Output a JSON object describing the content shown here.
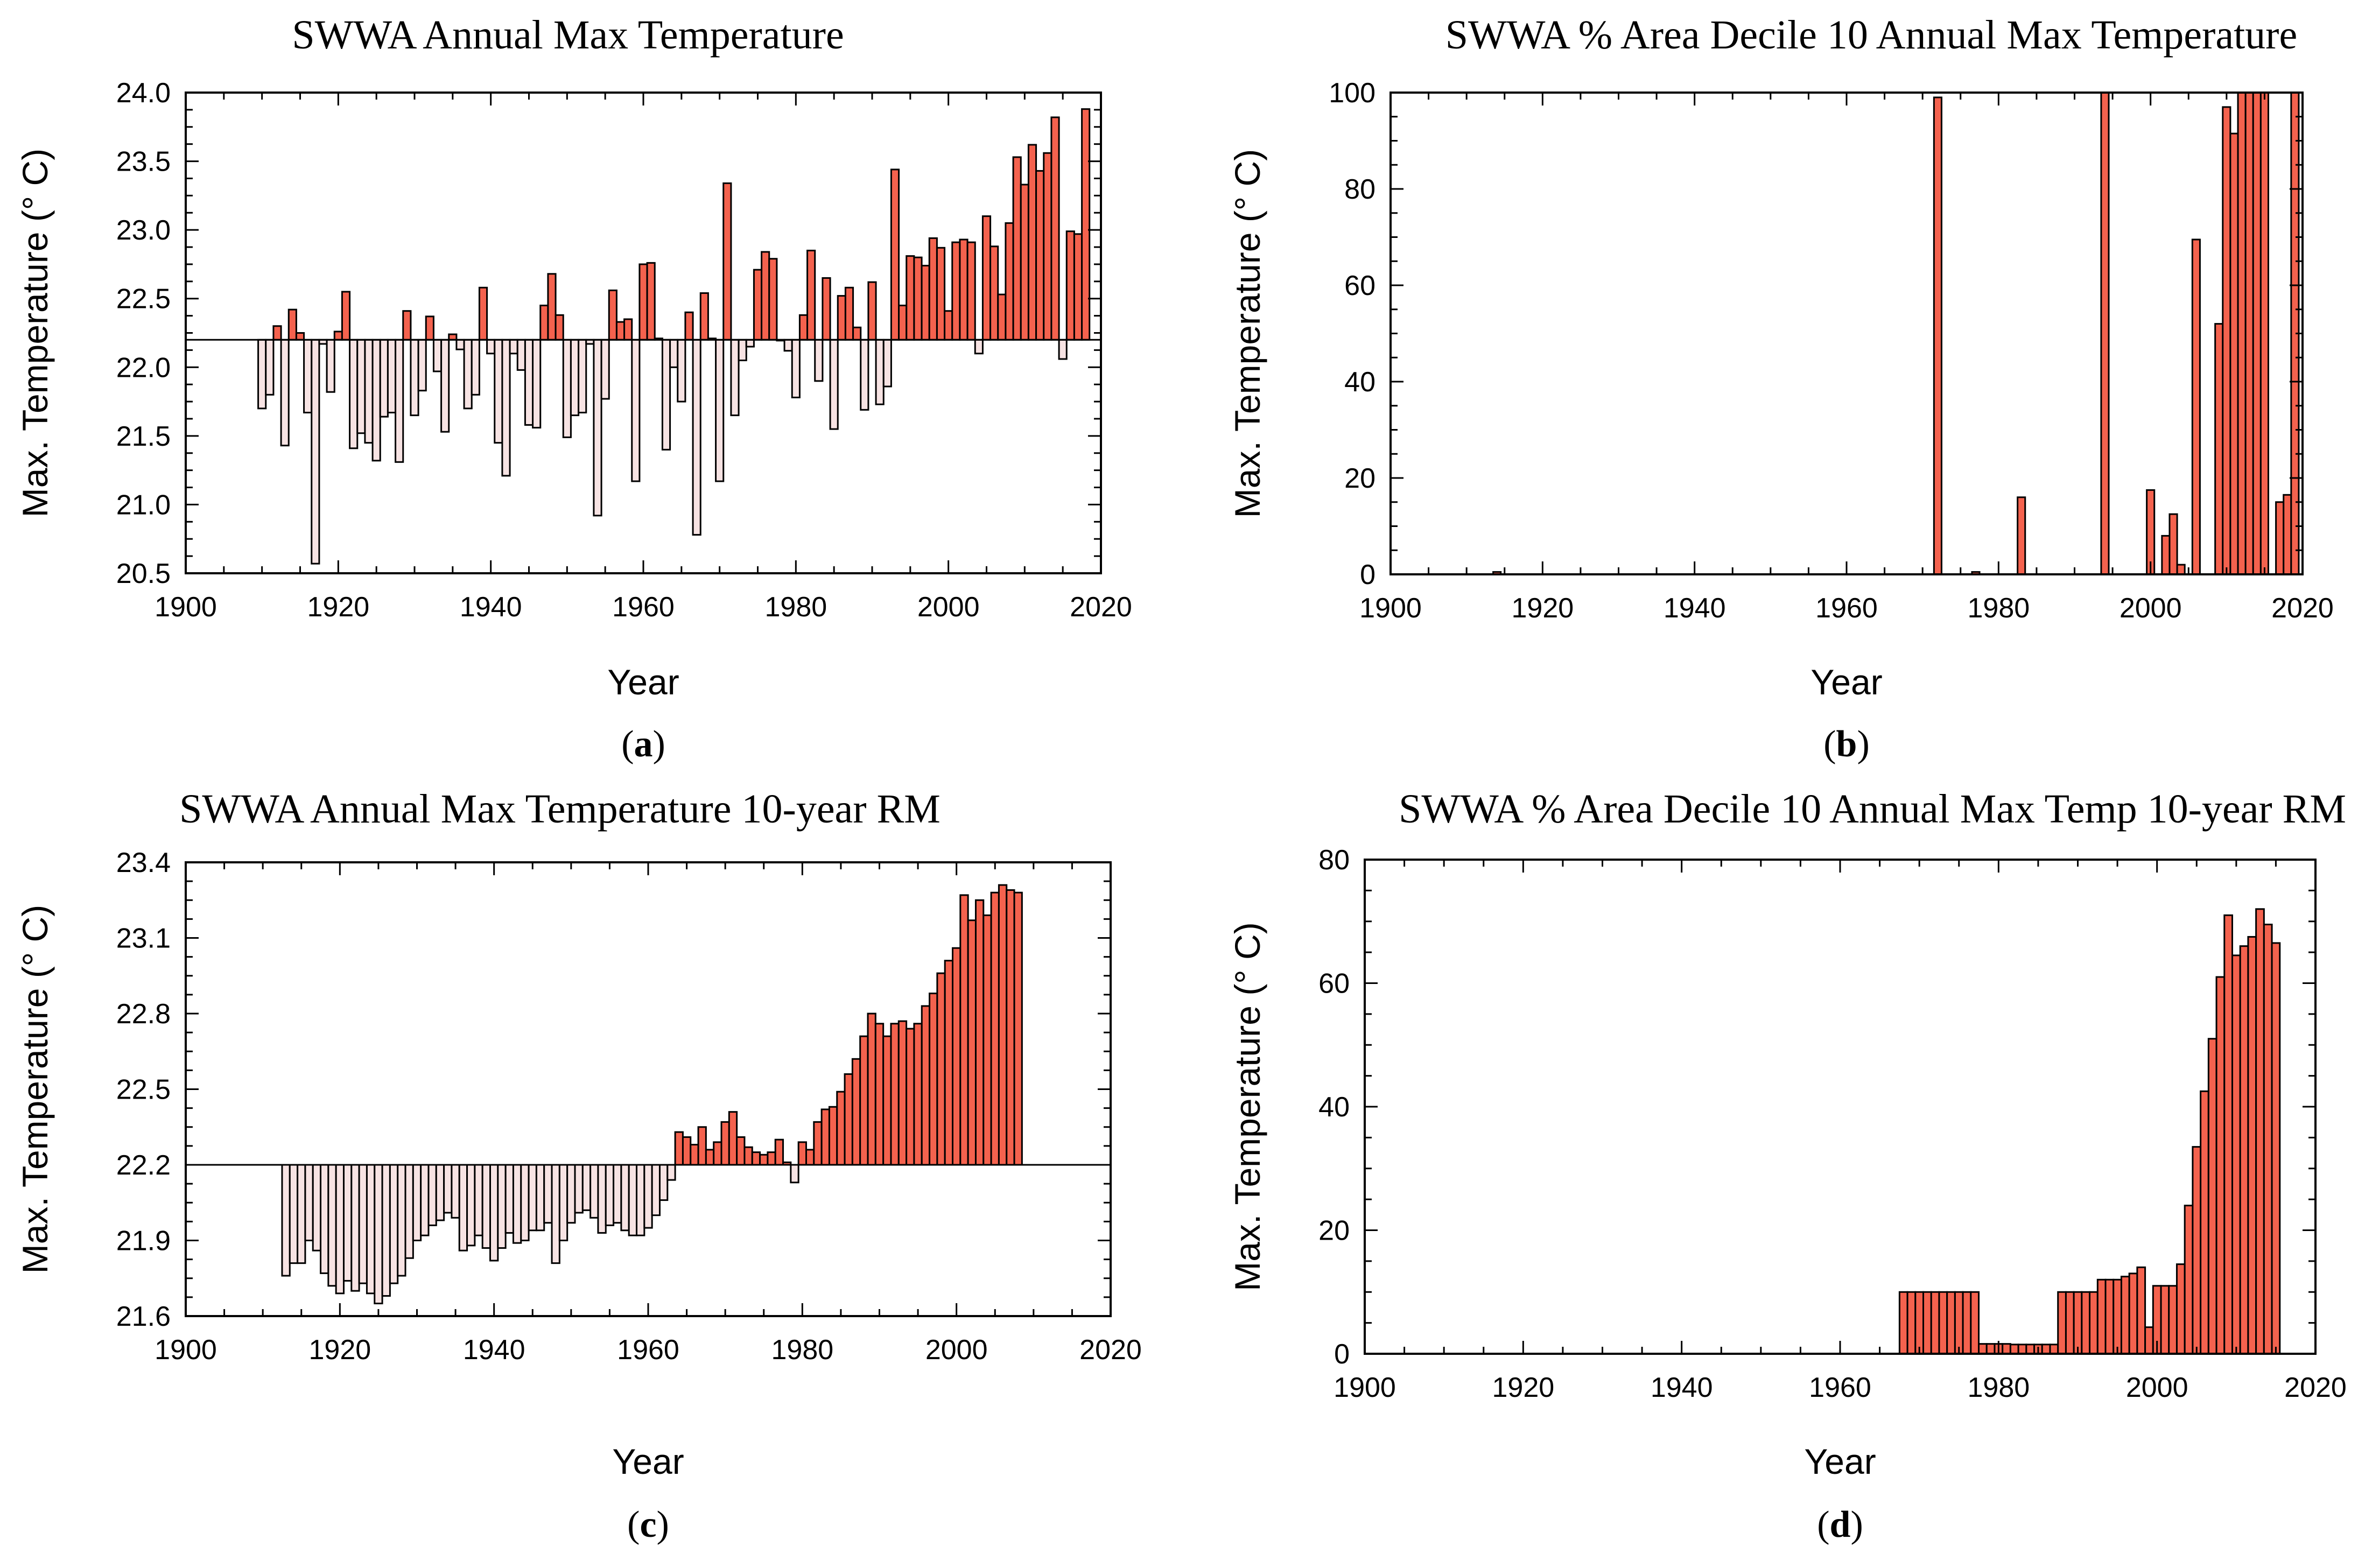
{
  "colors": {
    "above": "#f4624e",
    "below": "#f7e3e3",
    "stroke": "#000000",
    "background": "#ffffff"
  },
  "chart_data": [
    {
      "type": "bar",
      "panel": "a",
      "caption": {
        "open": "(",
        "letter": "a",
        "close": ")"
      },
      "title": "SWWA Annual Max Temperature",
      "xlabel": "Year",
      "ylabel": "Max. Temperature (° C)",
      "xlim": [
        1900,
        2020
      ],
      "ylim": [
        20.5,
        24.0
      ],
      "xticks": [
        "1900",
        "1920",
        "1940",
        "1960",
        "1980",
        "2000",
        "2020"
      ],
      "yticks": [
        "20.5",
        "21.0",
        "21.5",
        "22.0",
        "22.5",
        "23.0",
        "23.5",
        "24.0"
      ],
      "baseline": 22.2,
      "bar_width": 1,
      "x_start": 1910,
      "values": [
        21.7,
        21.8,
        22.3,
        21.43,
        22.42,
        22.25,
        21.67,
        20.57,
        22.17,
        21.82,
        22.26,
        22.55,
        21.41,
        21.52,
        21.45,
        21.32,
        21.64,
        21.67,
        21.31,
        22.41,
        21.65,
        21.83,
        22.37,
        21.97,
        21.53,
        22.24,
        22.13,
        21.7,
        21.8,
        22.58,
        22.1,
        21.45,
        21.21,
        22.1,
        21.98,
        21.58,
        21.56,
        22.45,
        22.68,
        22.38,
        21.49,
        21.65,
        21.67,
        22.17,
        20.92,
        21.77,
        22.56,
        22.33,
        22.35,
        21.17,
        22.75,
        22.76,
        22.21,
        21.4,
        22.0,
        21.75,
        22.4,
        20.78,
        22.54,
        22.21,
        21.17,
        23.34,
        21.65,
        22.05,
        22.15,
        22.71,
        22.84,
        22.79,
        22.2,
        22.12,
        21.78,
        22.38,
        22.85,
        21.9,
        22.65,
        21.55,
        22.52,
        22.58,
        22.29,
        21.69,
        22.62,
        21.73,
        21.86,
        23.44,
        22.45,
        22.81,
        22.8,
        22.74,
        22.94,
        22.87,
        22.41,
        22.91,
        22.93,
        22.91,
        22.1,
        23.1,
        22.88,
        22.53,
        23.05,
        23.53,
        23.33,
        23.62,
        23.43,
        23.56,
        23.82,
        22.06,
        22.99,
        22.97,
        23.88
      ]
    },
    {
      "type": "bar",
      "panel": "b",
      "caption": {
        "open": "(",
        "letter": "b",
        "close": ")"
      },
      "title": "SWWA % Area Decile 10 Annual Max Temperature",
      "xlabel": "Year",
      "ylabel": "Max. Temperature (° C)",
      "xlim": [
        1900,
        2020
      ],
      "ylim": [
        0,
        100
      ],
      "xticks": [
        "1900",
        "1920",
        "1940",
        "1960",
        "1980",
        "2000",
        "2020"
      ],
      "yticks": [
        "0",
        "20",
        "40",
        "60",
        "80",
        "100"
      ],
      "baseline": 0,
      "bar_width": 1,
      "points": [
        [
          1914,
          0.5
        ],
        [
          1972,
          99
        ],
        [
          1977,
          0.5
        ],
        [
          1983,
          16
        ],
        [
          1994,
          100
        ],
        [
          2000,
          17.5
        ],
        [
          2002,
          8
        ],
        [
          2003,
          12.5
        ],
        [
          2004,
          2
        ],
        [
          2006,
          69.5
        ],
        [
          2009,
          52
        ],
        [
          2010,
          97
        ],
        [
          2011,
          91.5
        ],
        [
          2012,
          100
        ],
        [
          2013,
          100
        ],
        [
          2014,
          100
        ],
        [
          2015,
          100
        ],
        [
          2017,
          15
        ],
        [
          2018,
          16.5
        ],
        [
          2019,
          100
        ]
      ]
    },
    {
      "type": "bar",
      "panel": "c",
      "caption": {
        "open": "(",
        "letter": "c",
        "close": ")"
      },
      "title": "SWWA Annual Max Temperature 10-year RM",
      "xlabel": "Year",
      "ylabel": "Max. Temperature (° C)",
      "xlim": [
        1900,
        2020
      ],
      "ylim": [
        21.6,
        23.4
      ],
      "xticks": [
        "1900",
        "1920",
        "1940",
        "1960",
        "1980",
        "2000",
        "2020"
      ],
      "yticks": [
        "21.6",
        "21.9",
        "22.2",
        "22.5",
        "22.8",
        "23.1",
        "23.4"
      ],
      "baseline": 22.2,
      "bar_width": 1,
      "x_start": 1913,
      "values": [
        21.76,
        21.81,
        21.81,
        21.9,
        21.86,
        21.77,
        21.72,
        21.69,
        21.74,
        21.7,
        21.73,
        21.69,
        21.65,
        21.68,
        21.73,
        21.76,
        21.83,
        21.9,
        21.92,
        21.96,
        21.98,
        22.01,
        21.99,
        21.86,
        21.88,
        21.92,
        21.87,
        21.82,
        21.87,
        21.93,
        21.89,
        21.9,
        21.94,
        21.94,
        21.97,
        21.81,
        21.9,
        21.97,
        22.01,
        22.02,
        21.99,
        21.93,
        21.96,
        21.97,
        21.94,
        21.92,
        21.92,
        21.95,
        22.0,
        22.06,
        22.14,
        22.33,
        22.31,
        22.28,
        22.35,
        22.26,
        22.29,
        22.37,
        22.41,
        22.31,
        22.27,
        22.25,
        22.24,
        22.25,
        22.3,
        22.21,
        22.13,
        22.29,
        22.26,
        22.37,
        22.42,
        22.43,
        22.49,
        22.56,
        22.62,
        22.71,
        22.8,
        22.76,
        22.71,
        22.76,
        22.77,
        22.74,
        22.76,
        22.83,
        22.88,
        22.96,
        23.01,
        23.06,
        23.27,
        23.17,
        23.25,
        23.19,
        23.28,
        23.31,
        23.29,
        23.28
      ]
    },
    {
      "type": "bar",
      "panel": "d",
      "caption": {
        "open": "(",
        "letter": "d",
        "close": ")"
      },
      "title": "SWWA % Area Decile 10 Annual Max Temp 10-year RM",
      "xlabel": "Year",
      "ylabel": "Max. Temperature (° C)",
      "xlim": [
        1900,
        2020
      ],
      "ylim": [
        0,
        80
      ],
      "xticks": [
        "1900",
        "1920",
        "1940",
        "1960",
        "1980",
        "2000",
        "2020"
      ],
      "yticks": [
        "0",
        "20",
        "40",
        "60",
        "80"
      ],
      "baseline": 0,
      "bar_width": 1,
      "x_start": 1968,
      "values": [
        10,
        10,
        10,
        10,
        10,
        10,
        10,
        10,
        10,
        10,
        1.6,
        1.6,
        1.6,
        1.6,
        1.5,
        1.5,
        1.5,
        1.5,
        1.5,
        1.5,
        10,
        10,
        10,
        10,
        10,
        12,
        12,
        12,
        12.5,
        13,
        14,
        4.3,
        11,
        11,
        11,
        14.5,
        24,
        33.5,
        42.5,
        51,
        61,
        71,
        64.5,
        66,
        67.5,
        72,
        69.5,
        66.5
      ]
    }
  ]
}
